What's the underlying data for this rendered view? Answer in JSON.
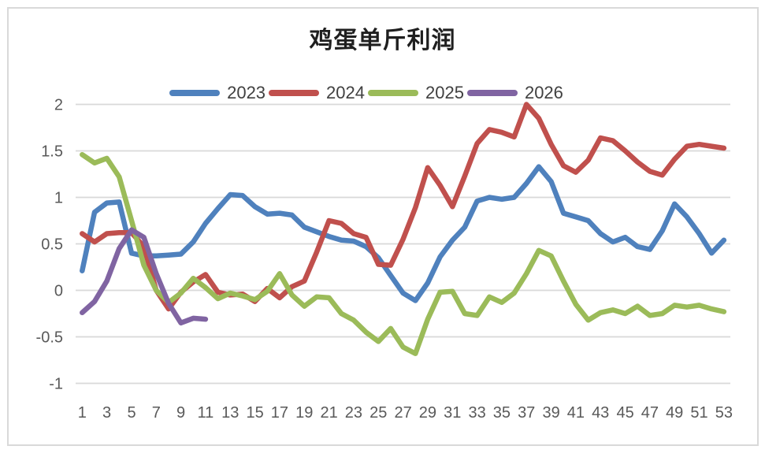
{
  "chart_data": {
    "type": "line",
    "title": "鸡蛋单斤利润",
    "x_axis_label": "",
    "y_axis_label": "",
    "xlim": [
      1,
      53
    ],
    "ylim": [
      -1,
      2
    ],
    "grid": "horizontal",
    "legend_position": "top-center",
    "x_tick_labels": [
      "1",
      "3",
      "5",
      "7",
      "9",
      "11",
      "13",
      "15",
      "17",
      "19",
      "21",
      "23",
      "25",
      "27",
      "29",
      "31",
      "33",
      "35",
      "37",
      "39",
      "41",
      "43",
      "45",
      "47",
      "49",
      "51",
      "53"
    ],
    "y_ticks": [
      2,
      1.5,
      1,
      0.5,
      0,
      -0.5,
      -1
    ],
    "y_tick_labels": [
      "2",
      "1.5",
      "1",
      "0.5",
      "0",
      "-0.5",
      "-1"
    ],
    "series": [
      {
        "name": "2023",
        "color": "#4F81BD",
        "start_week": 1,
        "values": [
          0.21,
          0.84,
          0.94,
          0.95,
          0.4,
          0.37,
          0.37,
          0.38,
          0.39,
          0.52,
          0.72,
          0.88,
          1.03,
          1.02,
          0.9,
          0.82,
          0.83,
          0.81,
          0.68,
          0.63,
          0.58,
          0.54,
          0.53,
          0.47,
          0.35,
          0.16,
          -0.03,
          -0.11,
          0.08,
          0.36,
          0.54,
          0.68,
          0.96,
          1.0,
          0.98,
          1.0,
          1.15,
          1.33,
          1.17,
          0.83,
          0.79,
          0.75,
          0.61,
          0.52,
          0.57,
          0.47,
          0.44,
          0.64,
          0.93,
          0.79,
          0.61,
          0.4,
          0.54
        ]
      },
      {
        "name": "2024",
        "color": "#C0504D",
        "start_week": 1,
        "values": [
          0.61,
          0.52,
          0.61,
          0.62,
          0.62,
          0.47,
          0.0,
          -0.2,
          -0.02,
          0.09,
          0.17,
          -0.02,
          -0.05,
          -0.04,
          -0.12,
          0.02,
          -0.08,
          0.04,
          0.1,
          0.41,
          0.75,
          0.72,
          0.61,
          0.57,
          0.28,
          0.27,
          0.55,
          0.89,
          1.32,
          1.13,
          0.9,
          1.23,
          1.58,
          1.73,
          1.7,
          1.65,
          2.0,
          1.85,
          1.57,
          1.34,
          1.27,
          1.4,
          1.64,
          1.61,
          1.5,
          1.38,
          1.28,
          1.24,
          1.41,
          1.55,
          1.57,
          1.55,
          1.53
        ]
      },
      {
        "name": "2025",
        "color": "#9BBB59",
        "start_week": 1,
        "values": [
          1.46,
          1.37,
          1.42,
          1.22,
          0.75,
          0.27,
          0.0,
          -0.13,
          -0.03,
          0.13,
          0.03,
          -0.09,
          -0.03,
          -0.06,
          -0.1,
          -0.01,
          0.18,
          -0.05,
          -0.17,
          -0.07,
          -0.08,
          -0.25,
          -0.32,
          -0.45,
          -0.55,
          -0.41,
          -0.61,
          -0.68,
          -0.31,
          -0.02,
          -0.01,
          -0.25,
          -0.27,
          -0.07,
          -0.13,
          -0.03,
          0.18,
          0.43,
          0.37,
          0.1,
          -0.15,
          -0.32,
          -0.24,
          -0.21,
          -0.25,
          -0.17,
          -0.27,
          -0.25,
          -0.16,
          -0.18,
          -0.16,
          -0.2,
          -0.23
        ]
      },
      {
        "name": "2026",
        "color": "#8064A2",
        "start_week": 1,
        "values": [
          -0.24,
          -0.12,
          0.1,
          0.45,
          0.65,
          0.57,
          0.18,
          -0.14,
          -0.35,
          -0.3,
          -0.31
        ]
      }
    ]
  }
}
